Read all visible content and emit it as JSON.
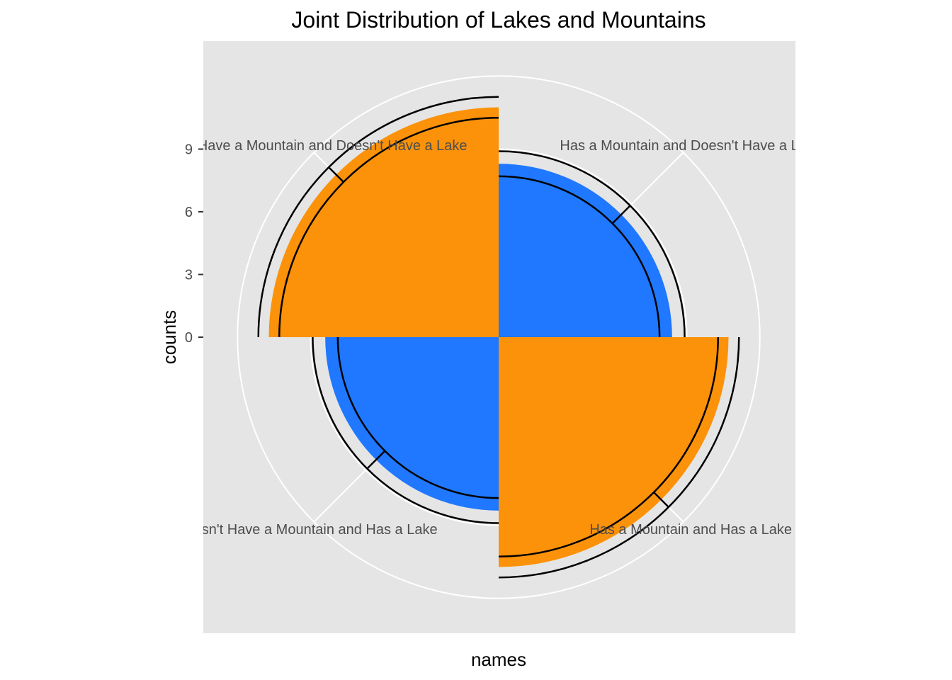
{
  "chart_data": {
    "type": "bar",
    "coord": "polar",
    "title": "Joint Distribution of Lakes and Mountains",
    "xlabel": "names",
    "ylabel": "counts",
    "categories": [
      "Has a Mountain and Doesn't Have a Lake",
      "Has a Mountain and Has a Lake",
      "Doesn't Have a Mountain and Has a Lake",
      "Doesn't Have a Mountain and Doesn't Have a Lake"
    ],
    "visible_category_labels": [
      "Has a Mountain and Doesn't Have a",
      "Has a Mountain and Has a Lak",
      "'t Have a Mountain and Has a Lake",
      "ve a Mountain and Doesn't Have a Lake"
    ],
    "values": [
      8.3,
      11.0,
      8.3,
      11.0
    ],
    "bar_colors": [
      "#1f78ff",
      "#fb9209",
      "#1f78ff",
      "#fb9209"
    ],
    "error_bars": [
      {
        "low": 7.7,
        "high": 8.9
      },
      {
        "low": 10.5,
        "high": 11.5
      },
      {
        "low": 7.7,
        "high": 8.9
      },
      {
        "low": 10.5,
        "high": 11.5
      }
    ],
    "y_ticks": [
      0,
      3,
      6,
      9
    ],
    "y_tick_labels": [
      "0",
      "3",
      "6",
      "9"
    ],
    "ylim": [
      0,
      12.5
    ],
    "grid": true,
    "legend": "none",
    "colors": {
      "panel": "#e5e5e5",
      "grid": "#ffffff",
      "blue": "#1f78ff",
      "orange": "#fb9209",
      "errorbar": "#000000"
    }
  }
}
